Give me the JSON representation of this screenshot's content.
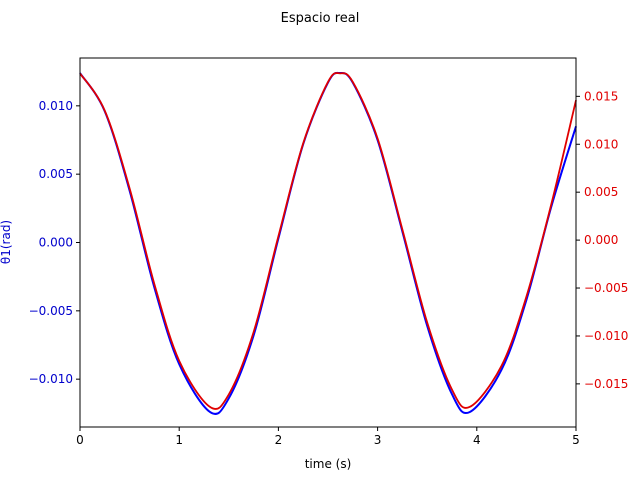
{
  "chart_data": {
    "type": "line",
    "title": "Espacio real",
    "xlabel": "time (s)",
    "ylabel_left": "θ1(rad)",
    "xlim": [
      0,
      5
    ],
    "ylim_left": [
      -0.0135,
      0.0135
    ],
    "ylim_right": [
      -0.0195,
      0.019
    ],
    "x_ticks": [
      0,
      1,
      2,
      3,
      4,
      5
    ],
    "x_tick_labels": [
      "0",
      "1",
      "2",
      "3",
      "4",
      "5"
    ],
    "y_left_ticks": [
      -0.01,
      -0.005,
      0.0,
      0.005,
      0.01
    ],
    "y_left_tick_labels": [
      "−0.010",
      "−0.005",
      "0.000",
      "0.005",
      "0.010"
    ],
    "y_right_ticks": [
      -0.015,
      -0.01,
      -0.005,
      0.0,
      0.005,
      0.01,
      0.015
    ],
    "y_right_tick_labels": [
      "−0.015",
      "−0.010",
      "−0.005",
      "0.000",
      "0.005",
      "0.010",
      "0.015"
    ],
    "grid": false,
    "series": [
      {
        "axis": "left",
        "color": "#0000ff",
        "x": [
          0.0,
          0.25,
          0.5,
          0.75,
          1.0,
          1.31,
          1.5,
          1.75,
          2.0,
          2.25,
          2.5,
          2.62,
          2.75,
          3.0,
          3.25,
          3.5,
          3.75,
          3.93,
          4.25,
          4.5,
          4.75,
          5.0
        ],
        "values": [
          0.0124,
          0.0096,
          0.0038,
          -0.0033,
          -0.0089,
          -0.0124,
          -0.0114,
          -0.0068,
          0.0003,
          0.0072,
          0.0117,
          0.0124,
          0.0117,
          0.0075,
          0.0008,
          -0.0061,
          -0.0111,
          -0.0124,
          -0.0093,
          -0.0042,
          0.0026,
          0.0085
        ]
      },
      {
        "axis": "right",
        "color": "#e00000",
        "x": [
          0.0,
          0.25,
          0.5,
          0.75,
          1.0,
          1.31,
          1.5,
          1.75,
          2.0,
          2.25,
          2.5,
          2.62,
          2.75,
          3.0,
          3.25,
          3.5,
          3.75,
          3.93,
          4.25,
          4.5,
          4.75,
          5.0
        ],
        "values": [
          0.0174,
          0.0135,
          0.0054,
          -0.0046,
          -0.0126,
          -0.0174,
          -0.0161,
          -0.0096,
          0.0004,
          0.0101,
          0.0165,
          0.0174,
          0.0165,
          0.0106,
          0.0011,
          -0.0086,
          -0.0156,
          -0.0174,
          -0.0131,
          -0.0059,
          0.0037,
          0.0146
        ]
      }
    ]
  }
}
